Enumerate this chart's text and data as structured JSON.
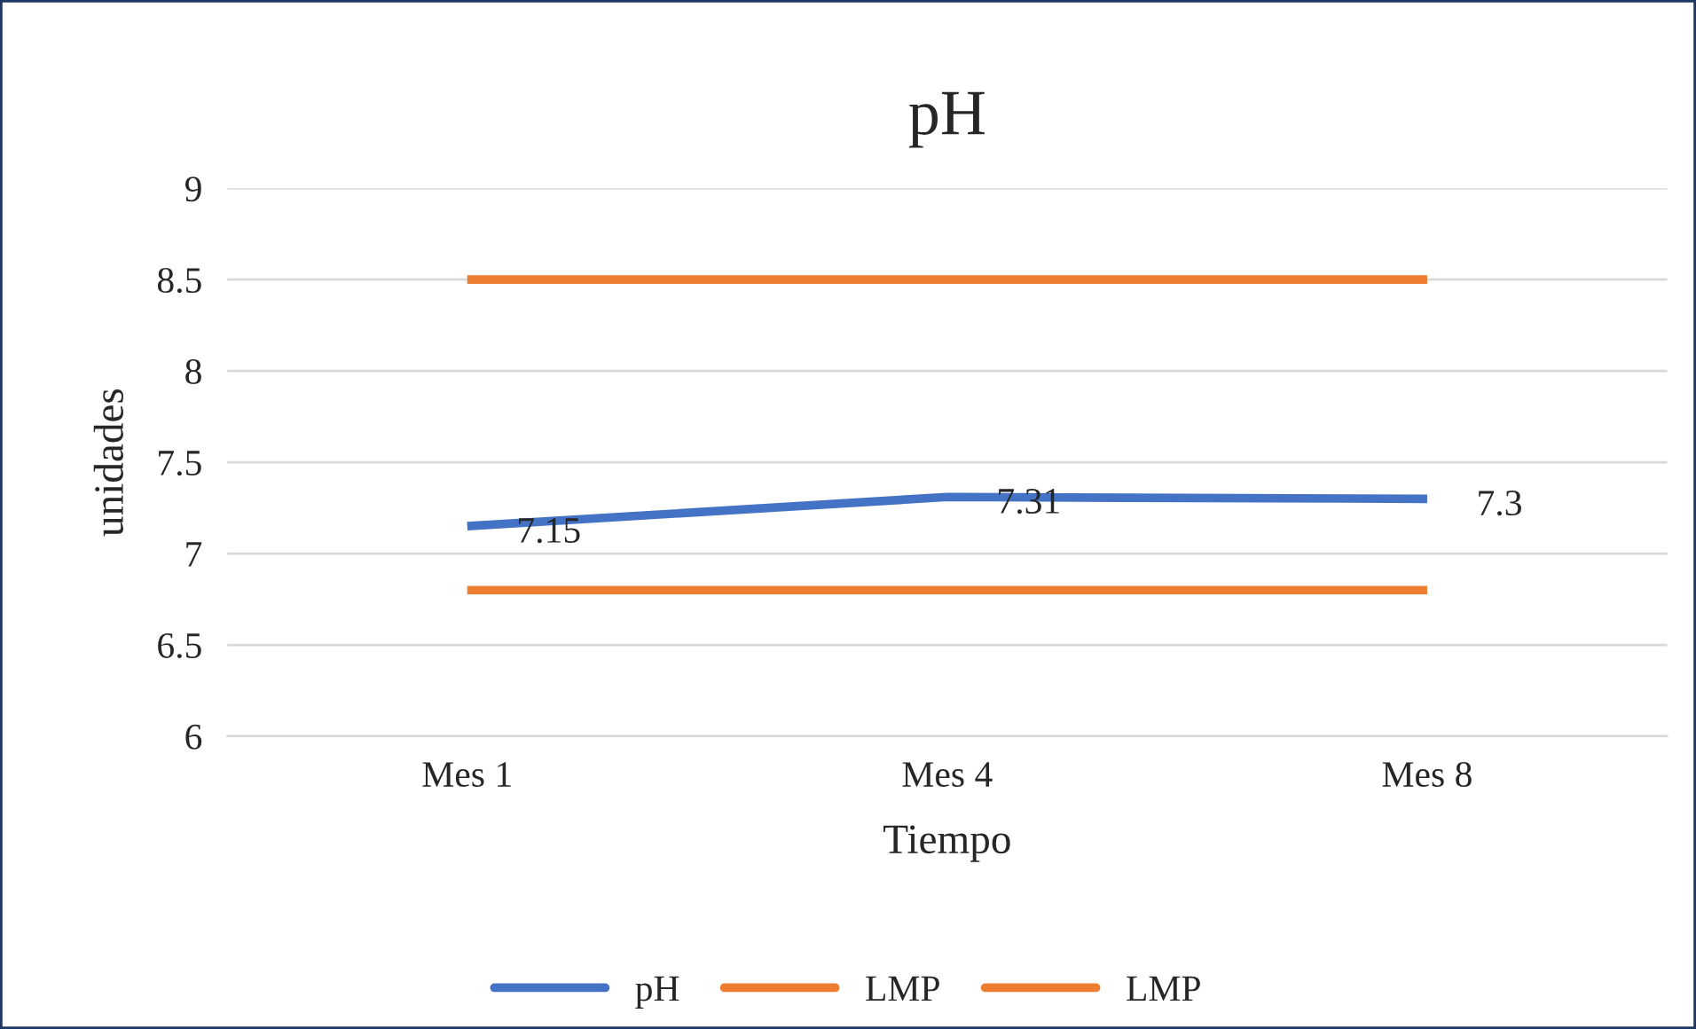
{
  "chart_data": {
    "type": "line",
    "title": "pH",
    "xlabel": "Tiempo",
    "ylabel": "unidades",
    "categories": [
      "Mes 1",
      "Mes 4",
      "Mes 8"
    ],
    "series": [
      {
        "name": "pH",
        "color": "#4472c4",
        "values": [
          7.15,
          7.31,
          7.3
        ],
        "value_labels": [
          "7.15",
          "7.31",
          "7.3"
        ]
      },
      {
        "name": "LMP",
        "color": "#ed7d31",
        "values": [
          8.5,
          8.5,
          8.5
        ]
      },
      {
        "name": "LMP",
        "color": "#ed7d31",
        "values": [
          6.8,
          6.8,
          6.8
        ]
      }
    ],
    "ylim": [
      6,
      9
    ],
    "yticks": [
      6,
      6.5,
      7,
      7.5,
      8,
      8.5,
      9
    ],
    "grid": "y",
    "legend": "bottom",
    "marker": "none",
    "line_style": "solid"
  }
}
